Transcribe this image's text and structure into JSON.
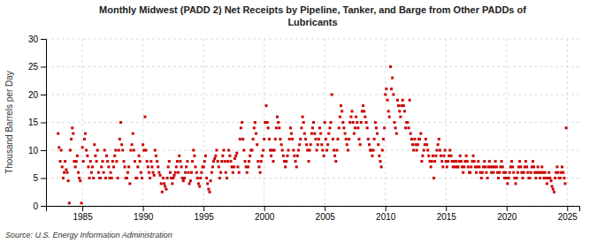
{
  "chart_data": {
    "type": "scatter",
    "title": "Monthly Midwest (PADD 2) Net Receipts by Pipeline, Tanker, and Barge from Other PADDs of\nLubricants",
    "ylabel": "Thousand Barrels per Day",
    "source": "Source: U.S. Energy Information Administration",
    "color": "#CC0000",
    "marker": "square",
    "grid": true,
    "xlim": [
      1982.0,
      2026.0
    ],
    "ylim": [
      0,
      30
    ],
    "xticks": [
      1985,
      1990,
      1995,
      2000,
      2005,
      2010,
      2015,
      2020,
      2025
    ],
    "yticks": [
      0,
      5,
      10,
      15,
      20,
      25,
      30
    ],
    "x": [
      1983.0,
      1983.08,
      1983.17,
      1983.25,
      1983.33,
      1983.42,
      1983.5,
      1983.58,
      1983.67,
      1983.75,
      1983.83,
      1983.92,
      1984.0,
      1984.08,
      1984.17,
      1984.25,
      1984.33,
      1984.42,
      1984.5,
      1984.58,
      1984.67,
      1984.75,
      1984.83,
      1984.92,
      1985.0,
      1985.08,
      1985.17,
      1985.25,
      1985.33,
      1985.42,
      1985.5,
      1985.58,
      1985.67,
      1985.75,
      1985.83,
      1985.92,
      1986.0,
      1986.08,
      1986.17,
      1986.25,
      1986.33,
      1986.42,
      1986.5,
      1986.58,
      1986.67,
      1986.75,
      1986.83,
      1986.92,
      1987.0,
      1987.08,
      1987.17,
      1987.25,
      1987.33,
      1987.42,
      1987.5,
      1987.58,
      1987.67,
      1987.75,
      1987.83,
      1987.92,
      1988.0,
      1988.08,
      1988.17,
      1988.25,
      1988.33,
      1988.42,
      1988.5,
      1988.58,
      1988.67,
      1988.75,
      1988.83,
      1988.92,
      1989.0,
      1989.08,
      1989.17,
      1989.25,
      1989.33,
      1989.42,
      1989.5,
      1989.58,
      1989.67,
      1989.75,
      1989.83,
      1989.92,
      1990.0,
      1990.08,
      1990.17,
      1990.25,
      1990.33,
      1990.42,
      1990.5,
      1990.58,
      1990.67,
      1990.75,
      1990.83,
      1990.92,
      1991.0,
      1991.08,
      1991.17,
      1991.25,
      1991.33,
      1991.42,
      1991.5,
      1991.58,
      1991.67,
      1991.75,
      1991.83,
      1991.92,
      1992.0,
      1992.08,
      1992.17,
      1992.25,
      1992.33,
      1992.42,
      1992.5,
      1992.58,
      1992.67,
      1992.75,
      1992.83,
      1992.92,
      1993.0,
      1993.08,
      1993.17,
      1993.25,
      1993.33,
      1993.42,
      1993.5,
      1993.58,
      1993.67,
      1993.75,
      1993.83,
      1993.92,
      1994.0,
      1994.08,
      1994.17,
      1994.25,
      1994.33,
      1994.42,
      1994.5,
      1994.58,
      1994.67,
      1994.75,
      1994.83,
      1994.92,
      1995.0,
      1995.08,
      1995.17,
      1995.25,
      1995.33,
      1995.42,
      1995.5,
      1995.58,
      1995.67,
      1995.75,
      1995.83,
      1995.92,
      1996.0,
      1996.08,
      1996.17,
      1996.25,
      1996.33,
      1996.42,
      1996.5,
      1996.58,
      1996.67,
      1996.75,
      1996.83,
      1996.92,
      1997.0,
      1997.08,
      1997.17,
      1997.25,
      1997.33,
      1997.42,
      1997.5,
      1997.58,
      1997.67,
      1997.75,
      1997.83,
      1997.92,
      1998.0,
      1998.08,
      1998.17,
      1998.25,
      1998.33,
      1998.42,
      1998.5,
      1998.58,
      1998.67,
      1998.75,
      1998.83,
      1998.92,
      1999.0,
      1999.08,
      1999.17,
      1999.25,
      1999.33,
      1999.42,
      1999.5,
      1999.58,
      1999.67,
      1999.75,
      1999.83,
      1999.92,
      2000.0,
      2000.08,
      2000.17,
      2000.25,
      2000.33,
      2000.42,
      2000.5,
      2000.58,
      2000.67,
      2000.75,
      2000.83,
      2000.92,
      2001.0,
      2001.08,
      2001.17,
      2001.25,
      2001.33,
      2001.42,
      2001.5,
      2001.58,
      2001.67,
      2001.75,
      2001.83,
      2001.92,
      2002.0,
      2002.08,
      2002.17,
      2002.25,
      2002.33,
      2002.42,
      2002.5,
      2002.58,
      2002.67,
      2002.75,
      2002.83,
      2002.92,
      2003.0,
      2003.08,
      2003.17,
      2003.25,
      2003.33,
      2003.42,
      2003.5,
      2003.58,
      2003.67,
      2003.75,
      2003.83,
      2003.92,
      2004.0,
      2004.08,
      2004.17,
      2004.25,
      2004.33,
      2004.42,
      2004.5,
      2004.58,
      2004.67,
      2004.75,
      2004.83,
      2004.92,
      2005.0,
      2005.08,
      2005.17,
      2005.25,
      2005.33,
      2005.42,
      2005.5,
      2005.58,
      2005.67,
      2005.75,
      2005.83,
      2005.92,
      2006.0,
      2006.08,
      2006.17,
      2006.25,
      2006.33,
      2006.42,
      2006.5,
      2006.58,
      2006.67,
      2006.75,
      2006.83,
      2006.92,
      2007.0,
      2007.08,
      2007.17,
      2007.25,
      2007.33,
      2007.42,
      2007.5,
      2007.58,
      2007.67,
      2007.75,
      2007.83,
      2007.92,
      2008.0,
      2008.08,
      2008.17,
      2008.25,
      2008.33,
      2008.42,
      2008.5,
      2008.58,
      2008.67,
      2008.75,
      2008.83,
      2008.92,
      2009.0,
      2009.08,
      2009.17,
      2009.25,
      2009.33,
      2009.42,
      2009.5,
      2009.58,
      2009.67,
      2009.75,
      2009.83,
      2009.92,
      2010.0,
      2010.08,
      2010.17,
      2010.25,
      2010.33,
      2010.42,
      2010.5,
      2010.58,
      2010.67,
      2010.75,
      2010.83,
      2010.92,
      2011.0,
      2011.08,
      2011.17,
      2011.25,
      2011.33,
      2011.42,
      2011.5,
      2011.58,
      2011.67,
      2011.75,
      2011.83,
      2011.92,
      2012.0,
      2012.08,
      2012.17,
      2012.25,
      2012.33,
      2012.42,
      2012.5,
      2012.58,
      2012.67,
      2012.75,
      2012.83,
      2012.92,
      2013.0,
      2013.08,
      2013.17,
      2013.25,
      2013.33,
      2013.42,
      2013.5,
      2013.58,
      2013.67,
      2013.75,
      2013.83,
      2013.92,
      2014.0,
      2014.08,
      2014.17,
      2014.25,
      2014.33,
      2014.42,
      2014.5,
      2014.58,
      2014.67,
      2014.75,
      2014.83,
      2014.92,
      2015.0,
      2015.08,
      2015.17,
      2015.25,
      2015.33,
      2015.42,
      2015.5,
      2015.58,
      2015.67,
      2015.75,
      2015.83,
      2015.92,
      2016.0,
      2016.08,
      2016.17,
      2016.25,
      2016.33,
      2016.42,
      2016.5,
      2016.58,
      2016.67,
      2016.75,
      2016.83,
      2016.92,
      2017.0,
      2017.08,
      2017.17,
      2017.25,
      2017.33,
      2017.42,
      2017.5,
      2017.58,
      2017.67,
      2017.75,
      2017.83,
      2017.92,
      2018.0,
      2018.08,
      2018.17,
      2018.25,
      2018.33,
      2018.42,
      2018.5,
      2018.58,
      2018.67,
      2018.75,
      2018.83,
      2018.92,
      2019.0,
      2019.08,
      2019.17,
      2019.25,
      2019.33,
      2019.42,
      2019.5,
      2019.58,
      2019.67,
      2019.75,
      2019.83,
      2019.92,
      2020.0,
      2020.08,
      2020.17,
      2020.25,
      2020.33,
      2020.42,
      2020.5,
      2020.58,
      2020.67,
      2020.75,
      2020.83,
      2020.92,
      2021.0,
      2021.08,
      2021.17,
      2021.25,
      2021.33,
      2021.42,
      2021.5,
      2021.58,
      2021.67,
      2021.75,
      2021.83,
      2021.92,
      2022.0,
      2022.08,
      2022.17,
      2022.25,
      2022.33,
      2022.42,
      2022.5,
      2022.58,
      2022.67,
      2022.75,
      2022.83,
      2022.92,
      2023.0,
      2023.08,
      2023.17,
      2023.25,
      2023.33,
      2023.42,
      2023.5,
      2023.58,
      2023.67,
      2023.75,
      2023.83,
      2023.92,
      2024.0,
      2024.08,
      2024.17,
      2024.25,
      2024.33,
      2024.42,
      2024.5,
      2024.58,
      2024.67,
      2024.75,
      2024.83,
      2024.92
    ],
    "values": [
      13.0,
      10.5,
      8.0,
      10.0,
      7.0,
      5.0,
      6.0,
      8.0,
      6.5,
      6.0,
      4.5,
      0.5,
      10.0,
      12.0,
      14.0,
      13.0,
      8.0,
      7.0,
      8.0,
      9.0,
      6.0,
      5.0,
      4.5,
      0.5,
      10.5,
      8.0,
      12.0,
      13.0,
      10.0,
      9.0,
      7.0,
      5.0,
      8.0,
      6.0,
      7.0,
      5.0,
      11.0,
      9.0,
      8.0,
      10.0,
      6.0,
      5.0,
      5.0,
      7.0,
      8.0,
      6.0,
      10.0,
      5.0,
      9.0,
      8.0,
      7.0,
      5.0,
      6.0,
      5.0,
      8.0,
      7.0,
      9.0,
      10.0,
      8.0,
      5.0,
      10.0,
      12.0,
      15.0,
      11.0,
      10.0,
      8.0,
      7.0,
      5.0,
      5.0,
      6.0,
      7.0,
      4.0,
      10.0,
      11.0,
      13.0,
      10.0,
      8.0,
      5.0,
      5.0,
      7.0,
      9.0,
      8.0,
      6.0,
      5.0,
      11.0,
      10.0,
      16.0,
      10.0,
      8.0,
      7.0,
      6.0,
      5.0,
      8.0,
      7.0,
      6.0,
      5.5,
      10.0,
      9.0,
      8.0,
      7.0,
      6.0,
      5.5,
      4.0,
      2.5,
      5.0,
      4.0,
      3.5,
      3.0,
      5.0,
      7.0,
      8.0,
      6.0,
      5.0,
      4.0,
      5.0,
      5.5,
      6.0,
      7.0,
      8.0,
      6.0,
      9.0,
      8.0,
      7.0,
      5.0,
      4.5,
      5.0,
      6.0,
      7.0,
      8.0,
      6.0,
      4.0,
      4.5,
      6.0,
      8.0,
      10.0,
      9.0,
      7.0,
      6.0,
      5.0,
      4.0,
      3.5,
      5.0,
      6.0,
      7.0,
      7.0,
      8.0,
      9.0,
      5.0,
      4.0,
      3.0,
      2.5,
      4.5,
      6.0,
      7.0,
      8.0,
      8.5,
      9.0,
      10.0,
      8.0,
      7.0,
      5.0,
      6.0,
      8.0,
      9.0,
      10.0,
      8.0,
      6.0,
      5.0,
      8.0,
      10.0,
      9.0,
      8.0,
      7.0,
      6.0,
      7.0,
      8.5,
      9.0,
      9.5,
      7.0,
      6.0,
      12.0,
      14.0,
      15.0,
      12.0,
      10.0,
      8.0,
      7.0,
      6.0,
      7.0,
      8.0,
      9.0,
      10.0,
      10.0,
      12.0,
      14.0,
      15.0,
      13.0,
      11.0,
      8.0,
      7.0,
      6.0,
      8.0,
      9.0,
      10.0,
      12.0,
      15.0,
      18.0,
      15.0,
      14.0,
      12.0,
      10.0,
      9.0,
      10.0,
      8.0,
      10.0,
      12.0,
      14.0,
      16.0,
      15.0,
      14.0,
      12.0,
      11.0,
      10.0,
      9.0,
      8.0,
      7.0,
      8.0,
      9.0,
      10.0,
      12.0,
      14.0,
      13.0,
      12.0,
      10.0,
      9.0,
      8.0,
      7.0,
      9.0,
      10.0,
      11.0,
      12.0,
      14.0,
      16.0,
      15.0,
      13.0,
      12.0,
      11.0,
      10.0,
      8.0,
      10.0,
      11.0,
      13.0,
      14.0,
      15.0,
      13.0,
      12.0,
      10.0,
      11.0,
      12.0,
      14.0,
      13.0,
      11.0,
      10.0,
      9.0,
      15.0,
      12.0,
      10.0,
      11.0,
      13.0,
      14.0,
      15.0,
      20.0,
      12.0,
      10.0,
      9.0,
      8.0,
      10.0,
      12.0,
      14.0,
      16.0,
      18.0,
      17.0,
      15.0,
      14.0,
      13.0,
      12.0,
      11.0,
      10.0,
      12.0,
      15.0,
      16.0,
      17.0,
      15.0,
      13.0,
      14.0,
      16.0,
      15.0,
      14.0,
      12.0,
      11.0,
      15.0,
      17.0,
      18.0,
      17.0,
      16.0,
      15.0,
      14.0,
      12.0,
      11.0,
      10.0,
      10.0,
      9.0,
      10.0,
      12.0,
      15.0,
      14.0,
      13.0,
      11.0,
      9.0,
      8.0,
      7.0,
      10.0,
      12.0,
      14.0,
      20.0,
      21.0,
      19.0,
      17.0,
      16.0,
      25.0,
      21.0,
      23.0,
      20.0,
      15.0,
      14.0,
      13.0,
      19.0,
      18.0,
      17.0,
      16.0,
      18.0,
      19.0,
      18.0,
      17.0,
      14.0,
      15.0,
      15.0,
      14.0,
      19.0,
      13.0,
      12.0,
      11.0,
      10.0,
      12.0,
      11.0,
      10.0,
      11.0,
      12.0,
      12.0,
      13.0,
      8.0,
      9.0,
      10.0,
      11.0,
      12.0,
      11.0,
      10.0,
      9.0,
      8.0,
      7.0,
      8.0,
      9.0,
      5.0,
      8.0,
      9.0,
      10.0,
      11.0,
      12.0,
      10.0,
      9.0,
      8.0,
      7.0,
      9.0,
      10.0,
      8.0,
      7.0,
      8.0,
      9.0,
      10.0,
      9.0,
      8.0,
      7.0,
      8.0,
      7.0,
      8.0,
      7.0,
      7.0,
      8.0,
      9.0,
      8.0,
      7.0,
      6.0,
      7.0,
      8.0,
      9.0,
      8.0,
      7.0,
      6.0,
      6.0,
      7.0,
      8.0,
      9.0,
      8.0,
      7.0,
      6.0,
      7.0,
      8.0,
      7.0,
      6.0,
      5.0,
      6.0,
      7.0,
      8.0,
      7.0,
      6.0,
      5.0,
      7.0,
      8.0,
      7.0,
      6.0,
      7.0,
      6.0,
      7.0,
      8.0,
      7.0,
      6.0,
      5.0,
      6.0,
      7.0,
      8.0,
      7.0,
      6.0,
      5.0,
      6.0,
      5.0,
      4.0,
      5.0,
      6.0,
      7.0,
      8.0,
      7.0,
      6.0,
      5.0,
      4.0,
      5.0,
      6.0,
      7.0,
      8.0,
      7.0,
      6.0,
      5.0,
      6.0,
      7.0,
      8.0,
      7.0,
      6.0,
      5.0,
      5.0,
      6.0,
      7.0,
      8.0,
      7.0,
      6.0,
      5.0,
      6.0,
      7.0,
      6.0,
      5.0,
      6.0,
      7.0,
      6.0,
      5.0,
      6.0,
      5.0,
      4.0,
      5.0,
      6.0,
      5.0,
      4.5,
      3.5,
      3.0,
      2.5,
      5.0,
      6.0,
      7.0,
      6.0,
      5.0,
      5.0,
      6.0,
      7.0,
      6.0,
      5.0,
      4.0,
      14.0
    ]
  }
}
